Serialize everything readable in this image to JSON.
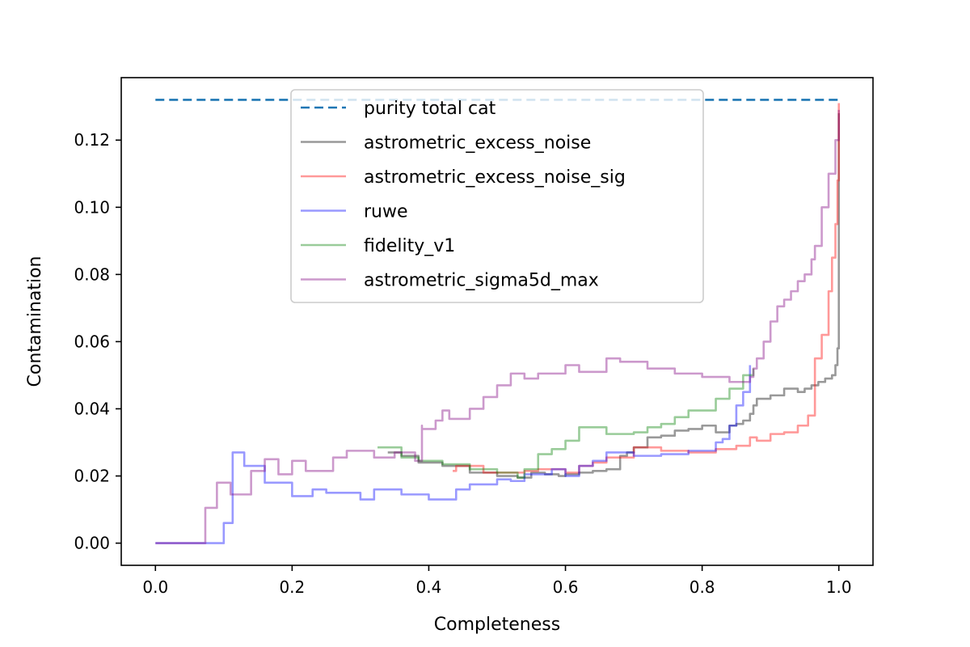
{
  "chart_data": {
    "type": "line",
    "xlabel": "Completeness",
    "ylabel": "Contamination",
    "xlim": [
      -0.05,
      1.05
    ],
    "ylim": [
      -0.0066,
      0.1386
    ],
    "xticks": [
      0.0,
      0.2,
      0.4,
      0.6,
      0.8,
      1.0
    ],
    "xtick_labels": [
      "0.0",
      "0.2",
      "0.4",
      "0.6",
      "0.8",
      "1.0"
    ],
    "yticks": [
      0.0,
      0.02,
      0.04,
      0.06,
      0.08,
      0.1,
      0.12
    ],
    "ytick_labels": [
      "0.00",
      "0.02",
      "0.04",
      "0.06",
      "0.08",
      "0.10",
      "0.12"
    ],
    "grid": false,
    "legend_position": "upper-center",
    "series": [
      {
        "name": "purity total cat",
        "color": "#1f77b4",
        "style": "dashed",
        "opacity": 1.0,
        "x": [
          0.0,
          1.0
        ],
        "y": [
          0.132,
          0.132
        ]
      },
      {
        "name": "astrometric_excess_noise",
        "color": "#000000",
        "style": "solid",
        "opacity": 0.4,
        "x": [
          0.34,
          0.36,
          0.385,
          0.42,
          0.46,
          0.5,
          0.53,
          0.55,
          0.57,
          0.59,
          0.6,
          0.62,
          0.64,
          0.66,
          0.68,
          0.69,
          0.7,
          0.72,
          0.74,
          0.76,
          0.78,
          0.8,
          0.82,
          0.84,
          0.85,
          0.86,
          0.87,
          0.875,
          0.88,
          0.9,
          0.92,
          0.94,
          0.95,
          0.96,
          0.97,
          0.98,
          0.99,
          0.995,
          0.998,
          1.0,
          1.0
        ],
        "y": [
          0.027,
          0.026,
          0.024,
          0.023,
          0.021,
          0.02,
          0.0195,
          0.021,
          0.0205,
          0.02,
          0.0205,
          0.021,
          0.0215,
          0.022,
          0.026,
          0.027,
          0.0285,
          0.0315,
          0.032,
          0.0335,
          0.034,
          0.035,
          0.033,
          0.035,
          0.0355,
          0.0365,
          0.0385,
          0.041,
          0.043,
          0.044,
          0.046,
          0.045,
          0.046,
          0.047,
          0.048,
          0.049,
          0.05,
          0.053,
          0.058,
          0.08,
          0.128
        ]
      },
      {
        "name": "astrometric_excess_noise_sig",
        "color": "#ff0000",
        "style": "solid",
        "opacity": 0.4,
        "x": [
          0.435,
          0.44,
          0.48,
          0.52,
          0.54,
          0.56,
          0.6,
          0.62,
          0.64,
          0.66,
          0.7,
          0.74,
          0.78,
          0.82,
          0.85,
          0.87,
          0.88,
          0.9,
          0.92,
          0.94,
          0.955,
          0.965,
          0.975,
          0.985,
          0.99,
          0.995,
          0.998,
          1.0,
          1.0
        ],
        "y": [
          0.0215,
          0.023,
          0.021,
          0.021,
          0.0215,
          0.022,
          0.021,
          0.023,
          0.024,
          0.0255,
          0.0285,
          0.0275,
          0.027,
          0.028,
          0.029,
          0.0315,
          0.0305,
          0.0325,
          0.033,
          0.035,
          0.038,
          0.055,
          0.062,
          0.075,
          0.085,
          0.095,
          0.108,
          0.115,
          0.131
        ]
      },
      {
        "name": "ruwe",
        "color": "#0000ff",
        "style": "solid",
        "opacity": 0.4,
        "x": [
          0.0,
          0.1,
          0.1,
          0.113,
          0.13,
          0.16,
          0.2,
          0.23,
          0.25,
          0.3,
          0.32,
          0.36,
          0.4,
          0.44,
          0.46,
          0.5,
          0.52,
          0.54,
          0.58,
          0.6,
          0.62,
          0.64,
          0.66,
          0.7,
          0.74,
          0.78,
          0.82,
          0.83,
          0.84,
          0.85,
          0.86,
          0.87
        ],
        "y": [
          0.0,
          0.0,
          0.006,
          0.027,
          0.023,
          0.018,
          0.014,
          0.016,
          0.015,
          0.013,
          0.016,
          0.0145,
          0.013,
          0.016,
          0.0175,
          0.019,
          0.0185,
          0.0205,
          0.022,
          0.02,
          0.023,
          0.0245,
          0.027,
          0.026,
          0.0265,
          0.0275,
          0.03,
          0.031,
          0.035,
          0.041,
          0.045,
          0.053
        ]
      },
      {
        "name": "fidelity_v1",
        "color": "#008000",
        "style": "solid",
        "opacity": 0.4,
        "x": [
          0.325,
          0.36,
          0.385,
          0.42,
          0.46,
          0.5,
          0.53,
          0.54,
          0.56,
          0.58,
          0.6,
          0.62,
          0.66,
          0.7,
          0.72,
          0.74,
          0.76,
          0.78,
          0.8,
          0.82,
          0.84,
          0.86,
          0.875
        ],
        "y": [
          0.0285,
          0.0255,
          0.0245,
          0.0235,
          0.022,
          0.021,
          0.0195,
          0.022,
          0.0265,
          0.028,
          0.0305,
          0.0345,
          0.0325,
          0.033,
          0.0345,
          0.0355,
          0.0375,
          0.0395,
          0.0395,
          0.043,
          0.046,
          0.05,
          0.052
        ]
      },
      {
        "name": "astrometric_sigma5d_max",
        "color": "#800080",
        "style": "solid",
        "opacity": 0.4,
        "x": [
          0.0,
          0.073,
          0.073,
          0.09,
          0.11,
          0.14,
          0.16,
          0.18,
          0.2,
          0.22,
          0.26,
          0.28,
          0.32,
          0.35,
          0.38,
          0.39,
          0.39,
          0.41,
          0.42,
          0.43,
          0.46,
          0.48,
          0.5,
          0.52,
          0.54,
          0.56,
          0.6,
          0.62,
          0.66,
          0.68,
          0.72,
          0.76,
          0.8,
          0.84,
          0.86,
          0.87,
          0.875,
          0.88,
          0.89,
          0.9,
          0.91,
          0.92,
          0.93,
          0.94,
          0.95,
          0.96,
          0.965,
          0.975,
          0.985,
          0.995,
          1.0
        ],
        "y": [
          0.0,
          0.0,
          0.0105,
          0.018,
          0.0145,
          0.0215,
          0.025,
          0.0205,
          0.0245,
          0.0215,
          0.0255,
          0.0275,
          0.0255,
          0.027,
          0.0245,
          0.035,
          0.034,
          0.0365,
          0.0395,
          0.037,
          0.04,
          0.0435,
          0.047,
          0.0505,
          0.049,
          0.0505,
          0.053,
          0.051,
          0.055,
          0.054,
          0.052,
          0.0505,
          0.0495,
          0.048,
          0.048,
          0.0495,
          0.052,
          0.055,
          0.06,
          0.066,
          0.0705,
          0.0725,
          0.075,
          0.078,
          0.08,
          0.0845,
          0.0885,
          0.1,
          0.11,
          0.12,
          0.129
        ]
      }
    ]
  }
}
